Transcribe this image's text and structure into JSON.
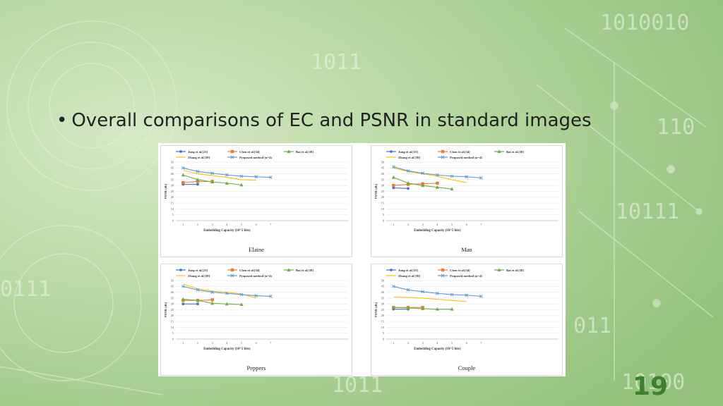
{
  "slide": {
    "bullet_text": "Overall comparisons of EC and PSNR in standard images",
    "slide_number": "19",
    "background_digits": [
      "1010010",
      "1011",
      "110",
      "10111",
      "011",
      "0111",
      "1011",
      "10100"
    ]
  },
  "colors": {
    "background": "#a9cc93",
    "jung": "#4472c4",
    "chen": "#ed7d31",
    "bai": "#70ad47",
    "zhang": "#ffc000",
    "proposed": "#5b9bd5"
  },
  "chart_data": [
    {
      "type": "line",
      "title": "Elaine",
      "xlabel": "Embedding Capacity (10^5 bits)",
      "ylabel": "PSNR (db)",
      "x": [
        1,
        2,
        3,
        4,
        5,
        6,
        7
      ],
      "xlim": [
        1,
        7
      ],
      "ylim": [
        0,
        50
      ],
      "yticks": [
        0,
        5,
        10,
        15,
        20,
        25,
        30,
        35,
        40,
        45,
        50
      ],
      "legend": "top",
      "series": [
        {
          "name": "Jung et al.[23]",
          "color": "#4472c4",
          "values": [
            31,
            31,
            null,
            null,
            null,
            null,
            null
          ]
        },
        {
          "name": "Chen et al.[34]",
          "color": "#ed7d31",
          "values": [
            32.5,
            33.5,
            33.5,
            null,
            null,
            null,
            null
          ]
        },
        {
          "name": "Bai et al.[38]",
          "color": "#70ad47",
          "values": [
            39,
            35,
            33,
            32,
            30.5,
            null,
            null
          ]
        },
        {
          "name": "Zhang et al.[39]",
          "color": "#ffc000",
          "values": [
            43,
            40,
            38.5,
            37,
            35,
            34.5,
            null
          ]
        },
        {
          "name": "Proposed method (n=4)",
          "color": "#5b9bd5",
          "values": [
            45,
            42,
            40.5,
            39,
            38,
            37.5,
            37
          ]
        }
      ]
    },
    {
      "type": "line",
      "title": "Man",
      "xlabel": "Embedding Capacity (10^5 bits)",
      "ylabel": "PSNR (db)",
      "x": [
        1,
        2,
        3,
        4,
        5,
        6,
        7
      ],
      "xlim": [
        1,
        7
      ],
      "ylim": [
        0,
        50
      ],
      "yticks": [
        0,
        5,
        10,
        15,
        20,
        25,
        30,
        35,
        40,
        45,
        50
      ],
      "legend": "top",
      "series": [
        {
          "name": "Jung et al.[23]",
          "color": "#4472c4",
          "values": [
            28,
            27.5,
            null,
            null,
            null,
            null,
            null
          ]
        },
        {
          "name": "Chen et al.[34]",
          "color": "#ed7d31",
          "values": [
            30,
            31,
            31.5,
            32,
            null,
            null,
            null
          ]
        },
        {
          "name": "Bai et al.[38]",
          "color": "#70ad47",
          "values": [
            37,
            32,
            30,
            28.5,
            27,
            null,
            null
          ]
        },
        {
          "name": "Zhang et al.[39]",
          "color": "#ffc000",
          "values": [
            45,
            42,
            40,
            38,
            35,
            32.5,
            null
          ]
        },
        {
          "name": "Proposed method (n=4)",
          "color": "#5b9bd5",
          "values": [
            46,
            42.5,
            40.5,
            39,
            38,
            37.5,
            36.5
          ]
        }
      ]
    },
    {
      "type": "line",
      "title": "Peppers",
      "xlabel": "Embedding Capacity (10^5 bits)",
      "ylabel": "PSNR (db)",
      "x": [
        1,
        2,
        3,
        4,
        5,
        6,
        7
      ],
      "xlim": [
        1,
        7
      ],
      "ylim": [
        0,
        50
      ],
      "yticks": [
        0,
        5,
        10,
        15,
        20,
        25,
        30,
        35,
        40,
        45,
        50
      ],
      "legend": "top",
      "series": [
        {
          "name": "Jung et al.[23]",
          "color": "#4472c4",
          "values": [
            30,
            30,
            null,
            null,
            null,
            null,
            null
          ]
        },
        {
          "name": "Chen et al.[34]",
          "color": "#ed7d31",
          "values": [
            33,
            33,
            33.5,
            null,
            null,
            null,
            null
          ]
        },
        {
          "name": "Bai et al.[38]",
          "color": "#70ad47",
          "values": [
            34,
            33,
            30.5,
            30,
            29.5,
            null,
            null
          ]
        },
        {
          "name": "Zhang et al.[39]",
          "color": "#ffc000",
          "values": [
            47,
            43,
            41,
            40,
            38.5,
            35,
            null
          ]
        },
        {
          "name": "Proposed method (n=4)",
          "color": "#5b9bd5",
          "values": [
            45,
            42,
            40,
            39,
            38,
            37,
            36.5
          ]
        }
      ]
    },
    {
      "type": "line",
      "title": "Couple",
      "xlabel": "Embedding Capacity (10^5 bits)",
      "ylabel": "PSNR (db)",
      "x": [
        1,
        2,
        3,
        4,
        5,
        6,
        7
      ],
      "xlim": [
        1,
        7
      ],
      "ylim": [
        0,
        50
      ],
      "yticks": [
        0,
        5,
        10,
        15,
        20,
        25,
        30,
        35,
        40,
        45,
        50
      ],
      "legend": "top",
      "series": [
        {
          "name": "Jung et al.[23]",
          "color": "#4472c4",
          "values": [
            25.5,
            25.5,
            null,
            null,
            null,
            null,
            null
          ]
        },
        {
          "name": "Chen et al.[34]",
          "color": "#ed7d31",
          "values": [
            27,
            27,
            27,
            null,
            null,
            null,
            null
          ]
        },
        {
          "name": "Bai et al.[38]",
          "color": "#70ad47",
          "values": [
            27,
            26.5,
            26,
            25.5,
            25.5,
            null,
            null
          ]
        },
        {
          "name": "Zhang et al.[39]",
          "color": "#ffc000",
          "values": [
            36,
            35.5,
            35,
            34,
            33,
            32,
            null
          ]
        },
        {
          "name": "Proposed method (n=4)",
          "color": "#5b9bd5",
          "values": [
            45,
            42,
            40.5,
            39,
            38,
            37.5,
            36.5
          ]
        }
      ]
    }
  ]
}
